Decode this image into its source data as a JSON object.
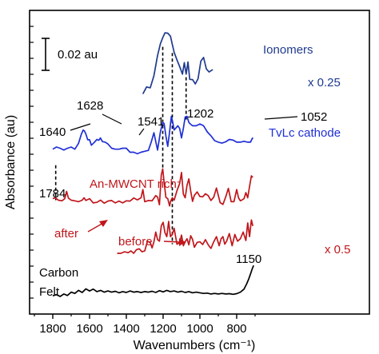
{
  "chart_data": {
    "type": "line",
    "title": "",
    "xlabel": "Wavenumbers (cm⁻¹)",
    "ylabel": "Absorbance (au)",
    "xlim": [
      1950,
      650
    ],
    "x_reversed": true,
    "ylim": [
      0,
      1
    ],
    "x_ticks": [
      1800,
      1600,
      1400,
      1200,
      1000,
      800
    ],
    "y_ticks_minor_count": 18,
    "grid": false,
    "scale_bar": {
      "label": "0.02 au"
    },
    "series": [
      {
        "name": "Ionomers",
        "label": "Ionomers",
        "scale_label": "x 0.25",
        "color": "#1f3a8f",
        "x": [
          1310,
          1290,
          1270,
          1250,
          1230,
          1215,
          1202,
          1190,
          1175,
          1160,
          1150,
          1140,
          1125,
          1110,
          1095,
          1085,
          1075,
          1065,
          1055,
          1040,
          1025,
          1010,
          995,
          980,
          965,
          950,
          930
        ],
        "y": [
          0.725,
          0.748,
          0.745,
          0.785,
          0.852,
          0.89,
          0.91,
          0.926,
          0.925,
          0.915,
          0.888,
          0.862,
          0.837,
          0.815,
          0.79,
          0.828,
          0.79,
          0.83,
          0.773,
          0.772,
          0.758,
          0.775,
          0.833,
          0.845,
          0.807,
          0.797,
          0.805
        ]
      },
      {
        "name": "TvLc cathode",
        "label": "TvLc cathode",
        "color": "#1f2fd6",
        "x": [
          1800,
          1780,
          1760,
          1740,
          1720,
          1700,
          1680,
          1660,
          1645,
          1635,
          1628,
          1620,
          1610,
          1600,
          1590,
          1575,
          1560,
          1550,
          1541,
          1530,
          1515,
          1500,
          1480,
          1460,
          1440,
          1420,
          1400,
          1380,
          1360,
          1340,
          1320,
          1300,
          1280,
          1265,
          1250,
          1240,
          1230,
          1215,
          1202,
          1195,
          1185,
          1175,
          1165,
          1155,
          1148,
          1140,
          1130,
          1120,
          1110,
          1100,
          1090,
          1080,
          1070,
          1060,
          1052,
          1040,
          1020,
          1000,
          980,
          960,
          940,
          920,
          900,
          880,
          860,
          840,
          820,
          800,
          780,
          760,
          740,
          725,
          715,
          710
        ],
        "y": [
          0.543,
          0.55,
          0.546,
          0.54,
          0.546,
          0.55,
          0.543,
          0.562,
          0.592,
          0.606,
          0.603,
          0.593,
          0.574,
          0.574,
          0.556,
          0.565,
          0.575,
          0.572,
          0.58,
          0.568,
          0.566,
          0.56,
          0.546,
          0.543,
          0.543,
          0.546,
          0.546,
          0.533,
          0.533,
          0.528,
          0.533,
          0.536,
          0.539,
          0.566,
          0.597,
          0.568,
          0.54,
          0.6,
          0.631,
          0.628,
          0.586,
          0.552,
          0.6,
          0.651,
          0.632,
          0.606,
          0.613,
          0.62,
          0.611,
          0.58,
          0.611,
          0.649,
          0.651,
          0.631,
          0.626,
          0.62,
          0.62,
          0.626,
          0.62,
          0.6,
          0.587,
          0.571,
          0.566,
          0.563,
          0.567,
          0.575,
          0.573,
          0.566,
          0.566,
          0.569,
          0.566,
          0.566,
          0.579,
          0.579
        ]
      },
      {
        "name": "An-MWCNT rich: after",
        "label": "after",
        "color": "#c0161b",
        "x": [
          1800,
          1790,
          1784,
          1770,
          1750,
          1735,
          1725,
          1715,
          1700,
          1680,
          1660,
          1640,
          1630,
          1620,
          1600,
          1580,
          1560,
          1540,
          1520,
          1500,
          1480,
          1460,
          1440,
          1420,
          1400,
          1380,
          1360,
          1340,
          1320,
          1310,
          1300,
          1280,
          1260,
          1240,
          1230,
          1220,
          1210,
          1202,
          1195,
          1185,
          1175,
          1165,
          1160,
          1150,
          1140,
          1125,
          1110,
          1100,
          1090,
          1080,
          1070,
          1060,
          1050,
          1040,
          1030,
          1015,
          1000,
          985,
          970,
          955,
          940,
          925,
          910,
          890,
          875,
          860,
          845,
          830,
          815,
          800,
          790,
          780,
          770,
          760,
          750,
          740,
          730,
          720,
          712
        ],
        "y": [
          0.38,
          0.382,
          0.382,
          0.375,
          0.373,
          0.38,
          0.404,
          0.382,
          0.375,
          0.373,
          0.37,
          0.375,
          0.383,
          0.374,
          0.38,
          0.366,
          0.368,
          0.375,
          0.365,
          0.372,
          0.374,
          0.366,
          0.372,
          0.366,
          0.373,
          0.372,
          0.382,
          0.376,
          0.383,
          0.41,
          0.37,
          0.374,
          0.373,
          0.39,
          0.385,
          0.36,
          0.458,
          0.478,
          0.435,
          0.384,
          0.38,
          0.356,
          0.37,
          0.383,
          0.375,
          0.406,
          0.43,
          0.466,
          0.395,
          0.383,
          0.424,
          0.445,
          0.405,
          0.371,
          0.391,
          0.402,
          0.387,
          0.386,
          0.396,
          0.39,
          0.374,
          0.385,
          0.415,
          0.367,
          0.361,
          0.385,
          0.414,
          0.37,
          0.37,
          0.41,
          0.383,
          0.373,
          0.376,
          0.38,
          0.4,
          0.383,
          0.42,
          0.455,
          0.45
        ]
      },
      {
        "name": "An-MWCNT rich: before",
        "label": "before",
        "scale_label": "x 0.5",
        "color": "#c0161b",
        "x": [
          1450,
          1430,
          1410,
          1390,
          1375,
          1360,
          1345,
          1330,
          1315,
          1300,
          1285,
          1270,
          1260,
          1250,
          1240,
          1230,
          1220,
          1210,
          1200,
          1190,
          1180,
          1170,
          1160,
          1150,
          1140,
          1125,
          1110,
          1100,
          1090,
          1080,
          1070,
          1060,
          1050,
          1040,
          1030,
          1015,
          1000,
          985,
          970,
          955,
          940,
          925,
          910,
          895,
          885,
          875,
          865,
          855,
          840,
          825,
          810,
          795,
          780,
          765,
          750,
          740,
          730,
          720,
          712
        ],
        "y": [
          0.2,
          0.2,
          0.205,
          0.202,
          0.208,
          0.2,
          0.212,
          0.215,
          0.205,
          0.208,
          0.24,
          0.235,
          0.218,
          0.238,
          0.27,
          0.245,
          0.24,
          0.29,
          0.302,
          0.268,
          0.255,
          0.305,
          0.255,
          0.262,
          0.282,
          0.23,
          0.235,
          0.26,
          0.225,
          0.238,
          0.248,
          0.228,
          0.258,
          0.246,
          0.22,
          0.236,
          0.238,
          0.229,
          0.245,
          0.228,
          0.216,
          0.238,
          0.255,
          0.225,
          0.248,
          0.255,
          0.23,
          0.24,
          0.265,
          0.225,
          0.262,
          0.24,
          0.248,
          0.27,
          0.242,
          0.3,
          0.255,
          0.31,
          0.29
        ]
      },
      {
        "name": "Carbon Felt",
        "label": "Carbon Felt",
        "color": "#000000",
        "x": [
          1800,
          1780,
          1760,
          1740,
          1720,
          1700,
          1680,
          1660,
          1640,
          1620,
          1600,
          1580,
          1560,
          1540,
          1520,
          1500,
          1480,
          1460,
          1440,
          1420,
          1400,
          1380,
          1360,
          1340,
          1320,
          1300,
          1280,
          1260,
          1240,
          1220,
          1200,
          1180,
          1160,
          1140,
          1120,
          1100,
          1080,
          1060,
          1040,
          1020,
          1000,
          980,
          960,
          940,
          920,
          900,
          880,
          860,
          840,
          820,
          800,
          780,
          760,
          745,
          735,
          725,
          715,
          708
        ],
        "y": [
          0.06,
          0.064,
          0.058,
          0.066,
          0.061,
          0.072,
          0.068,
          0.078,
          0.071,
          0.083,
          0.076,
          0.082,
          0.074,
          0.078,
          0.072,
          0.076,
          0.072,
          0.075,
          0.07,
          0.074,
          0.071,
          0.076,
          0.072,
          0.074,
          0.071,
          0.074,
          0.072,
          0.075,
          0.071,
          0.077,
          0.073,
          0.078,
          0.074,
          0.076,
          0.072,
          0.075,
          0.071,
          0.074,
          0.07,
          0.072,
          0.07,
          0.068,
          0.069,
          0.066,
          0.068,
          0.066,
          0.068,
          0.066,
          0.067,
          0.065,
          0.067,
          0.072,
          0.082,
          0.1,
          0.115,
          0.132,
          0.15,
          0.16
        ]
      }
    ],
    "annotations": [
      {
        "text": "1640",
        "x": 1640
      },
      {
        "text": "1628",
        "x": 1628
      },
      {
        "text": "1541",
        "x": 1541
      },
      {
        "text": "1202",
        "x": 1202
      },
      {
        "text": "1052",
        "x": 1052
      },
      {
        "text": "1784",
        "x": 1784
      },
      {
        "text": "1150",
        "x": 1150
      }
    ],
    "group_label": "An-MWCNT rich:",
    "dashed_markers": [
      1784,
      1202,
      1150,
      1075
    ]
  }
}
